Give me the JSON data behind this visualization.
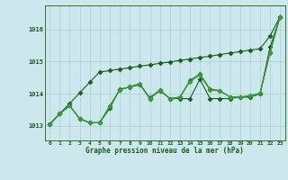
{
  "title": "Graphe pression niveau de la mer (hPa)",
  "background_color": "#cce8ec",
  "grid_color": "#aad0d8",
  "line_color_dark": "#1a5c1a",
  "line_color_mid": "#2e7d2e",
  "line_color_light": "#3a9c3a",
  "x_labels": [
    0,
    1,
    2,
    3,
    4,
    5,
    6,
    7,
    8,
    9,
    10,
    11,
    12,
    13,
    14,
    15,
    16,
    17,
    18,
    19,
    20,
    21,
    22,
    23
  ],
  "ylim": [
    1012.55,
    1016.75
  ],
  "yticks": [
    1013,
    1014,
    1015,
    1016
  ],
  "series_straight": [
    1013.05,
    1013.38,
    1013.7,
    1014.03,
    1014.36,
    1014.68,
    1014.72,
    1014.77,
    1014.81,
    1014.86,
    1014.9,
    1014.95,
    1014.99,
    1015.04,
    1015.08,
    1015.13,
    1015.17,
    1015.22,
    1015.27,
    1015.31,
    1015.36,
    1015.4,
    1015.8,
    1016.4
  ],
  "series1": [
    1013.05,
    1013.38,
    1013.63,
    1013.22,
    1013.1,
    1013.1,
    1013.55,
    1014.15,
    1014.2,
    1014.3,
    1013.85,
    1014.1,
    1013.85,
    1013.85,
    1013.85,
    1014.45,
    1013.85,
    1013.85,
    1013.85,
    1013.9,
    1013.9,
    1014.0,
    1015.45,
    1016.4
  ],
  "series2": [
    1013.05,
    1013.38,
    1013.63,
    1013.22,
    1013.1,
    1013.1,
    1013.62,
    1014.12,
    1014.22,
    1014.28,
    1013.88,
    1014.12,
    1013.85,
    1013.9,
    1014.42,
    1014.62,
    1014.15,
    1014.1,
    1013.9,
    1013.9,
    1013.9,
    1014.0,
    1015.3,
    1016.4
  ],
  "series3": [
    1013.05,
    1013.38,
    1013.63,
    1013.22,
    1013.1,
    1013.1,
    1013.62,
    1014.12,
    1014.22,
    1014.32,
    1013.85,
    1014.12,
    1013.85,
    1013.88,
    1014.38,
    1014.58,
    1014.12,
    1014.08,
    1013.9,
    1013.9,
    1013.95,
    1014.02,
    1015.28,
    1016.4
  ]
}
